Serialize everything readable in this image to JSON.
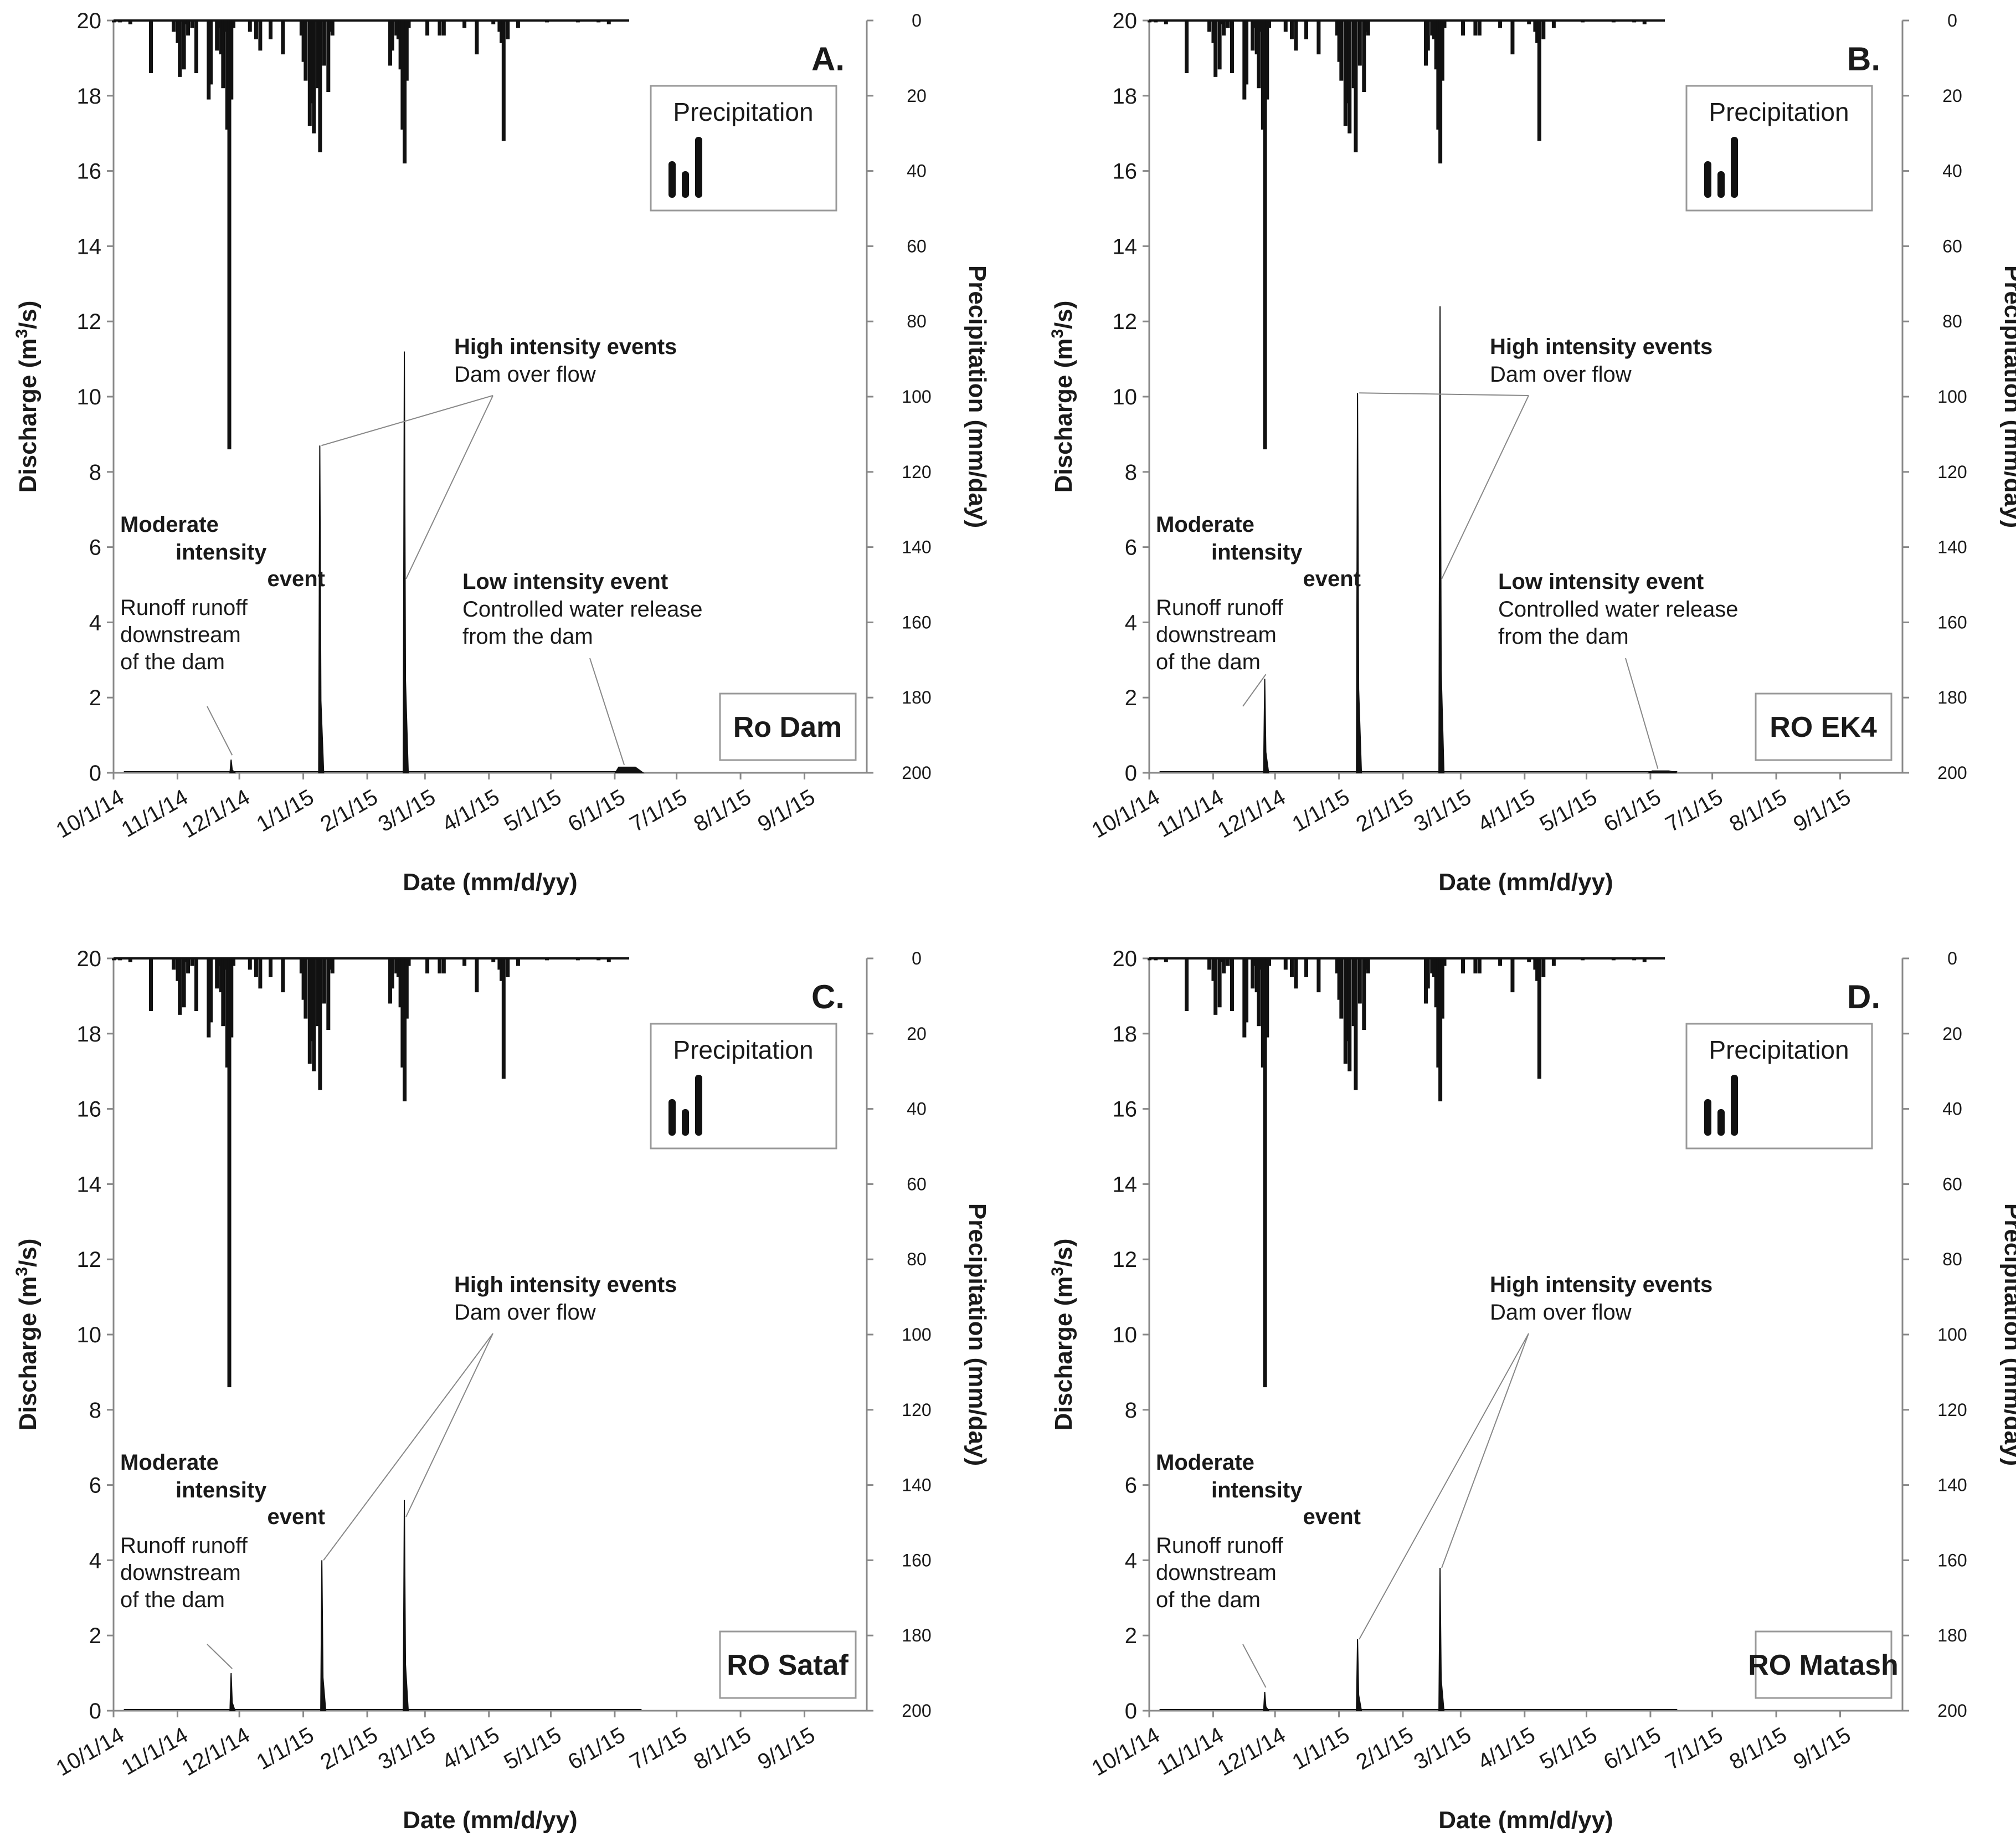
{
  "chart_data": [
    {
      "type": "bar",
      "panel_label": "A.",
      "station": "Ro Dam",
      "legend_title": "Precipitation",
      "xlabel": "Date (mm/d/yy)",
      "ylabel": "Discharge",
      "ylabel_unit_base": "m",
      "ylabel_unit_exp": "3",
      "ylabel_unit_tail": "/s)",
      "y2label": "Precipitation (mm/day)",
      "xticks": [
        "10/1/14",
        "11/1/14",
        "12/1/14",
        "1/1/15",
        "2/1/15",
        "3/1/15",
        "4/1/15",
        "5/1/15",
        "6/1/15",
        "7/1/15",
        "8/1/15",
        "9/1/15"
      ],
      "ylim": [
        0,
        20
      ],
      "y2lim": [
        0,
        200
      ],
      "yticks": [
        0,
        2,
        4,
        6,
        8,
        10,
        12,
        14,
        16,
        18,
        20
      ],
      "y2ticks": [
        0,
        20,
        40,
        60,
        80,
        100,
        120,
        140,
        160,
        180,
        200
      ],
      "discharge_peaks": [
        {
          "day": 57,
          "value": 0.35
        },
        {
          "day": 100,
          "value": 8.7
        },
        {
          "day": 141,
          "value": 11.2
        },
        {
          "day": 246,
          "value": 0.15
        }
      ],
      "annotations": {
        "moderate": {
          "title": [
            "Moderate",
            "intensity",
            "event"
          ],
          "desc": [
            "Runoff runoff",
            "downstream",
            "of the dam"
          ]
        },
        "high": {
          "title": "High intensity events",
          "desc": "Dam over flow"
        },
        "low": {
          "title": "Low intensity event",
          "desc": [
            "Controlled water release",
            "from the dam"
          ]
        }
      }
    },
    {
      "type": "bar",
      "panel_label": "B.",
      "station": "RO EK4",
      "legend_title": "Precipitation",
      "xlabel": "Date (mm/d/yy)",
      "ylabel": "Discharge",
      "ylabel_unit_base": "m",
      "ylabel_unit_exp": "3",
      "ylabel_unit_tail": "/s)",
      "y2label": "Precipitation (mm/day)",
      "xticks": [
        "10/1/14",
        "11/1/14",
        "12/1/14",
        "1/1/15",
        "2/1/15",
        "3/1/15",
        "4/1/15",
        "5/1/15",
        "6/1/15",
        "7/1/15",
        "8/1/15",
        "9/1/15"
      ],
      "ylim": [
        0,
        20
      ],
      "y2lim": [
        0,
        200
      ],
      "yticks": [
        0,
        2,
        4,
        6,
        8,
        10,
        12,
        14,
        16,
        18,
        20
      ],
      "y2ticks": [
        0,
        20,
        40,
        60,
        80,
        100,
        120,
        140,
        160,
        180,
        200
      ],
      "discharge_peaks": [
        {
          "day": 56,
          "value": 2.5
        },
        {
          "day": 101,
          "value": 10.1
        },
        {
          "day": 141,
          "value": 12.4
        },
        {
          "day": 245,
          "value": 0.05
        }
      ],
      "annotations": {
        "moderate": {
          "title": [
            "Moderate",
            "intensity",
            "event"
          ],
          "desc": [
            "Runoff runoff",
            "downstream",
            "of the dam"
          ]
        },
        "high": {
          "title": "High intensity events",
          "desc": "Dam over flow"
        },
        "low": {
          "title": "Low intensity event",
          "desc": [
            "Controlled water release",
            "from the dam"
          ]
        }
      }
    },
    {
      "type": "bar",
      "panel_label": "C.",
      "station": "RO Sataf",
      "legend_title": "Precipitation",
      "xlabel": "Date (mm/d/yy)",
      "ylabel": "Discharge",
      "ylabel_unit_base": "m",
      "ylabel_unit_exp": "3",
      "ylabel_unit_tail": "/s)",
      "y2label": "Precipitation (mm/day)",
      "xticks": [
        "10/1/14",
        "11/1/14",
        "12/1/14",
        "1/1/15",
        "2/1/15",
        "3/1/15",
        "4/1/15",
        "5/1/15",
        "6/1/15",
        "7/1/15",
        "8/1/15",
        "9/1/15"
      ],
      "ylim": [
        0,
        20
      ],
      "y2lim": [
        0,
        200
      ],
      "yticks": [
        0,
        2,
        4,
        6,
        8,
        10,
        12,
        14,
        16,
        18,
        20
      ],
      "y2ticks": [
        0,
        20,
        40,
        60,
        80,
        100,
        120,
        140,
        160,
        180,
        200
      ],
      "discharge_peaks": [
        {
          "day": 57,
          "value": 1.0
        },
        {
          "day": 101,
          "value": 4.0
        },
        {
          "day": 141,
          "value": 5.6
        }
      ],
      "annotations": {
        "moderate": {
          "title": [
            "Moderate",
            "intensity",
            "event"
          ],
          "desc": [
            "Runoff runoff",
            "downstream",
            "of the dam"
          ]
        },
        "high": {
          "title": "High intensity events",
          "desc": "Dam over flow"
        }
      }
    },
    {
      "type": "bar",
      "panel_label": "D.",
      "station": "RO Matash",
      "legend_title": "Precipitation",
      "xlabel": "Date (mm/d/yy)",
      "ylabel": "Discharge",
      "ylabel_unit_base": "m",
      "ylabel_unit_exp": "3",
      "ylabel_unit_tail": "/s)",
      "y2label": "Precipitation (mm/day)",
      "xticks": [
        "10/1/14",
        "11/1/14",
        "12/1/14",
        "1/1/15",
        "2/1/15",
        "3/1/15",
        "4/1/15",
        "5/1/15",
        "6/1/15",
        "7/1/15",
        "8/1/15",
        "9/1/15"
      ],
      "ylim": [
        0,
        20
      ],
      "y2lim": [
        0,
        200
      ],
      "yticks": [
        0,
        2,
        4,
        6,
        8,
        10,
        12,
        14,
        16,
        18,
        20
      ],
      "y2ticks": [
        0,
        20,
        40,
        60,
        80,
        100,
        120,
        140,
        160,
        180,
        200
      ],
      "discharge_peaks": [
        {
          "day": 56,
          "value": 0.5
        },
        {
          "day": 101,
          "value": 1.9
        },
        {
          "day": 141,
          "value": 3.8
        }
      ],
      "annotations": {
        "moderate": {
          "title": [
            "Moderate",
            "intensity",
            "event"
          ],
          "desc": [
            "Runoff runoff",
            "downstream",
            "of the dam"
          ]
        },
        "high": {
          "title": "High intensity events",
          "desc": "Dam over flow"
        }
      }
    }
  ],
  "precipitation_mm_day": [
    {
      "day": 0,
      "value": 0.5
    },
    {
      "day": 3,
      "value": 0.5
    },
    {
      "day": 8,
      "value": 1
    },
    {
      "day": 18,
      "value": 14
    },
    {
      "day": 29,
      "value": 3
    },
    {
      "day": 31,
      "value": 6
    },
    {
      "day": 32,
      "value": 15
    },
    {
      "day": 34,
      "value": 13
    },
    {
      "day": 35,
      "value": 1
    },
    {
      "day": 36,
      "value": 4
    },
    {
      "day": 38,
      "value": 2
    },
    {
      "day": 40,
      "value": 14
    },
    {
      "day": 46,
      "value": 21
    },
    {
      "day": 47,
      "value": 17
    },
    {
      "day": 50,
      "value": 8
    },
    {
      "day": 51,
      "value": 2
    },
    {
      "day": 52,
      "value": 9
    },
    {
      "day": 53,
      "value": 18
    },
    {
      "day": 54,
      "value": 3
    },
    {
      "day": 55,
      "value": 29
    },
    {
      "day": 56,
      "value": 114
    },
    {
      "day": 57,
      "value": 21
    },
    {
      "day": 58,
      "value": 2
    },
    {
      "day": 66,
      "value": 3
    },
    {
      "day": 69,
      "value": 5
    },
    {
      "day": 71,
      "value": 8
    },
    {
      "day": 76,
      "value": 5
    },
    {
      "day": 82,
      "value": 9
    },
    {
      "day": 91,
      "value": 4
    },
    {
      "day": 92,
      "value": 11
    },
    {
      "day": 93,
      "value": 16
    },
    {
      "day": 95,
      "value": 28
    },
    {
      "day": 96,
      "value": 22
    },
    {
      "day": 97,
      "value": 30
    },
    {
      "day": 99,
      "value": 18
    },
    {
      "day": 100,
      "value": 35
    },
    {
      "day": 102,
      "value": 12
    },
    {
      "day": 104,
      "value": 19
    },
    {
      "day": 105,
      "value": 3
    },
    {
      "day": 106,
      "value": 4
    },
    {
      "day": 134,
      "value": 12
    },
    {
      "day": 135,
      "value": 8
    },
    {
      "day": 137,
      "value": 4
    },
    {
      "day": 138,
      "value": 5
    },
    {
      "day": 139,
      "value": 13
    },
    {
      "day": 140,
      "value": 29
    },
    {
      "day": 141,
      "value": 38
    },
    {
      "day": 142,
      "value": 16
    },
    {
      "day": 143,
      "value": 2
    },
    {
      "day": 152,
      "value": 4
    },
    {
      "day": 158,
      "value": 4
    },
    {
      "day": 160,
      "value": 4
    },
    {
      "day": 170,
      "value": 2
    },
    {
      "day": 176,
      "value": 9
    },
    {
      "day": 184,
      "value": 1
    },
    {
      "day": 187,
      "value": 3
    },
    {
      "day": 188,
      "value": 6
    },
    {
      "day": 189,
      "value": 32
    },
    {
      "day": 191,
      "value": 5
    },
    {
      "day": 196,
      "value": 2
    },
    {
      "day": 210,
      "value": 0.5
    },
    {
      "day": 225,
      "value": 0.5
    },
    {
      "day": 235,
      "value": 0.5
    },
    {
      "day": 240,
      "value": 1
    }
  ]
}
